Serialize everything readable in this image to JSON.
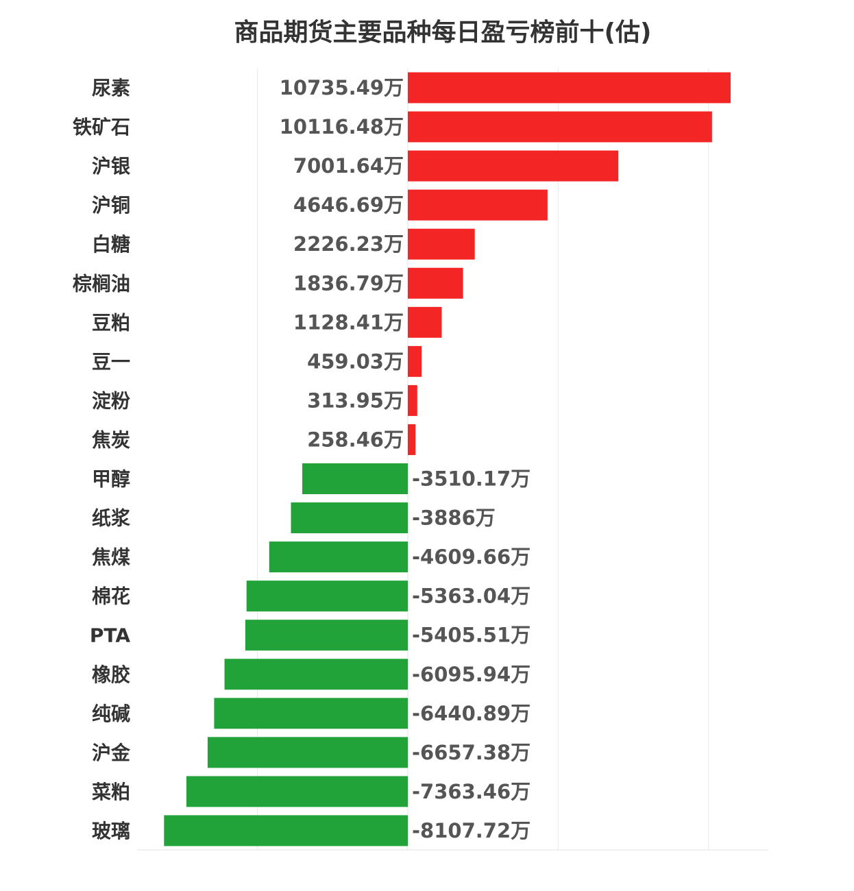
{
  "chart_data": {
    "type": "bar",
    "orientation": "horizontal",
    "title": "商品期货主要品种每日盈亏榜前十(估)",
    "unit_suffix": "万",
    "positive_color": "#f42525",
    "negative_color": "#21a33a",
    "grid": true,
    "xlim": [
      -15000,
      20000
    ],
    "categories": [
      "尿素",
      "铁矿石",
      "沪银",
      "沪铜",
      "白糖",
      "棕榈油",
      "豆粕",
      "豆一",
      "淀粉",
      "焦炭",
      "甲醇",
      "纸浆",
      "焦煤",
      "棉花",
      "PTA",
      "橡胶",
      "纯碱",
      "沪金",
      "菜粕",
      "玻璃"
    ],
    "values": [
      10735.49,
      10116.48,
      7001.64,
      4646.69,
      2226.23,
      1836.79,
      1128.41,
      459.03,
      313.95,
      258.46,
      -3510.17,
      -3886,
      -4609.66,
      -5363.04,
      -5405.51,
      -6095.94,
      -6440.89,
      -6657.38,
      -7363.46,
      -8107.72
    ],
    "value_labels": [
      "10735.49万",
      "10116.48万",
      "7001.64万",
      "4646.69万",
      "2226.23万",
      "1836.79万",
      "1128.41万",
      "459.03万",
      "313.95万",
      "258.46万",
      "-3510.17万",
      "-3886万",
      "-4609.66万",
      "-5363.04万",
      "-5405.51万",
      "-6095.94万",
      "-6440.89万",
      "-6657.38万",
      "-7363.46万",
      "-8107.72万"
    ]
  }
}
